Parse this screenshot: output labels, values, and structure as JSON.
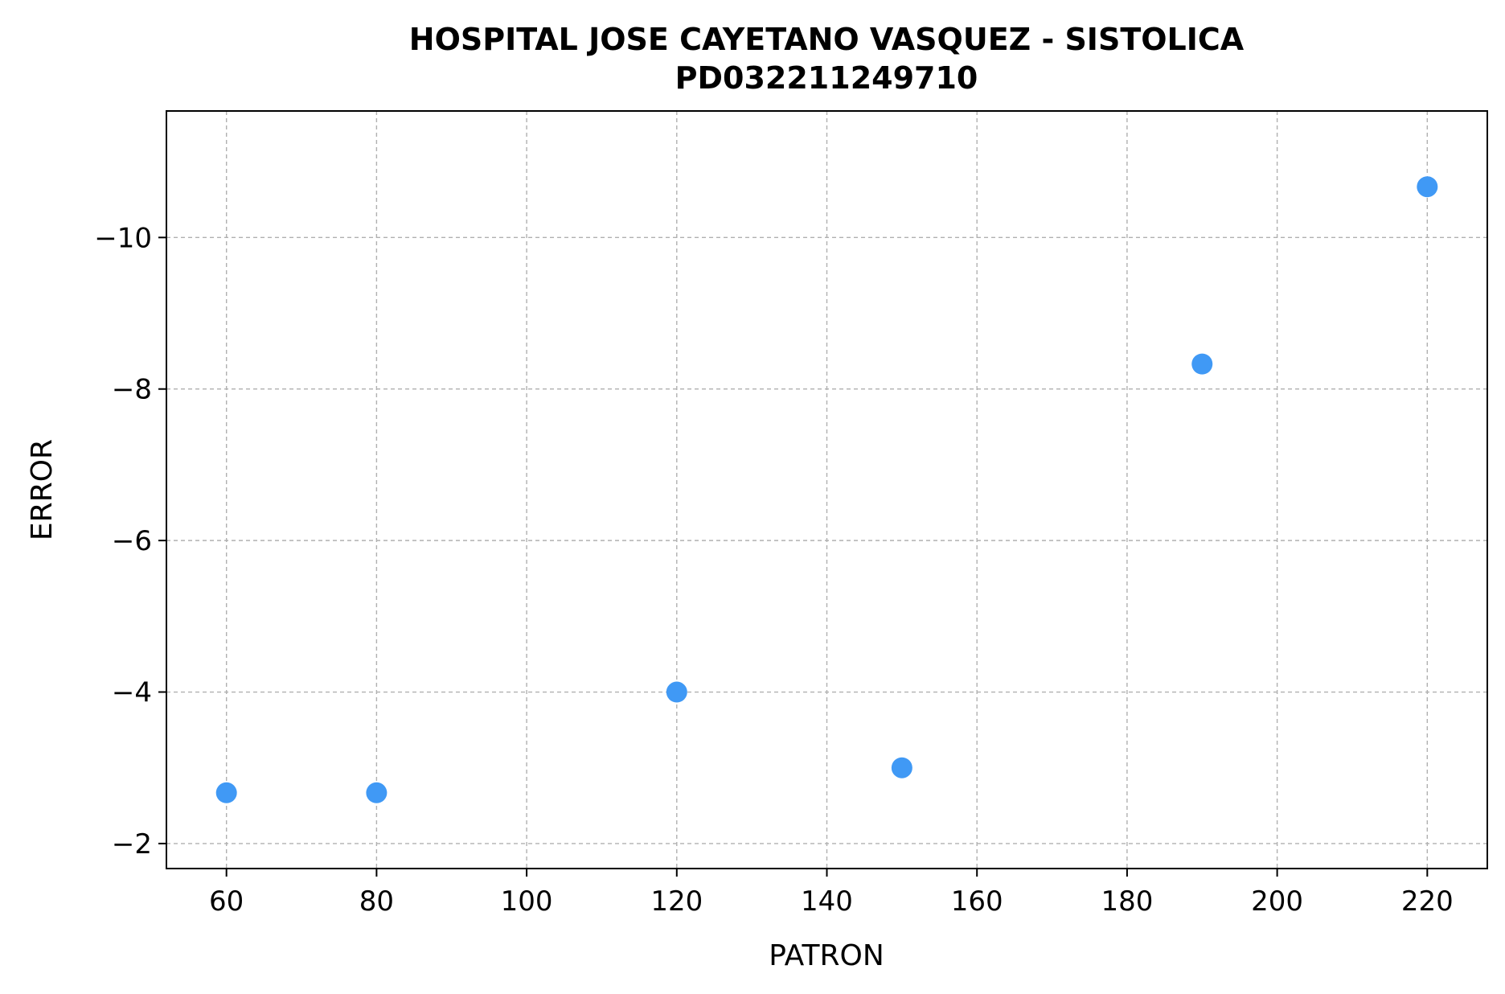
{
  "chart_data": {
    "type": "scatter",
    "title_line1": "HOSPITAL JOSE CAYETANO VASQUEZ - SISTOLICA",
    "title_line2": "PD032211249710",
    "xlabel": "PATRON",
    "ylabel": "ERROR",
    "x": [
      60,
      80,
      120,
      150,
      190,
      220
    ],
    "y": [
      -2.67,
      -2.67,
      -4.0,
      -3.0,
      -8.33,
      -10.67
    ],
    "xlim": [
      52,
      228
    ],
    "ylim": [
      -1.67,
      -11.67
    ],
    "y_axis_inverted": true,
    "xticks": [
      60,
      80,
      100,
      120,
      140,
      160,
      180,
      200,
      220
    ],
    "yticks": [
      -10,
      -8,
      -6,
      -4,
      -2
    ],
    "grid": true,
    "point_color": "#4099f5"
  }
}
